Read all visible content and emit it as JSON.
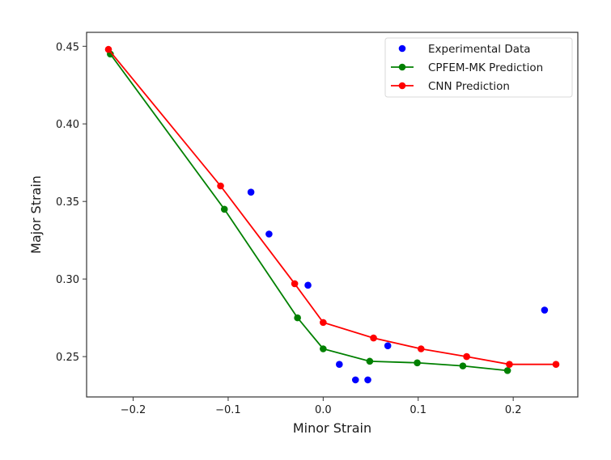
{
  "chart_data": {
    "type": "scatter",
    "title": "",
    "xlabel": "Minor Strain",
    "ylabel": "Major Strain",
    "xlim": [
      -0.249,
      0.268
    ],
    "ylim": [
      0.224,
      0.459
    ],
    "xticks": [
      -0.2,
      -0.1,
      0.0,
      0.1,
      0.2
    ],
    "xtick_labels": [
      "−0.2",
      "−0.1",
      "0.0",
      "0.1",
      "0.2"
    ],
    "yticks": [
      0.25,
      0.3,
      0.35,
      0.4,
      0.45
    ],
    "ytick_labels": [
      "0.25",
      "0.30",
      "0.35",
      "0.40",
      "0.45"
    ],
    "grid": false,
    "legend_position": "top-right",
    "series": [
      {
        "name": "Experimental Data",
        "kind": "scatter",
        "color": "#0000ff",
        "x": [
          -0.076,
          -0.057,
          -0.016,
          0.017,
          0.034,
          0.047,
          0.068,
          0.233
        ],
        "y": [
          0.356,
          0.329,
          0.296,
          0.245,
          0.235,
          0.235,
          0.257,
          0.28
        ]
      },
      {
        "name": "CPFEM-MK Prediction",
        "kind": "line-marker",
        "color": "#008000",
        "x": [
          -0.224,
          -0.104,
          -0.027,
          0.0,
          0.049,
          0.099,
          0.147,
          0.194
        ],
        "y": [
          0.445,
          0.345,
          0.275,
          0.255,
          0.247,
          0.246,
          0.244,
          0.241
        ]
      },
      {
        "name": "CNN Prediction",
        "kind": "line-marker",
        "color": "#ff0000",
        "x": [
          -0.226,
          -0.108,
          -0.03,
          0.0,
          0.053,
          0.103,
          0.151,
          0.196,
          0.245
        ],
        "y": [
          0.448,
          0.36,
          0.297,
          0.272,
          0.262,
          0.255,
          0.25,
          0.245,
          0.245
        ]
      }
    ]
  }
}
